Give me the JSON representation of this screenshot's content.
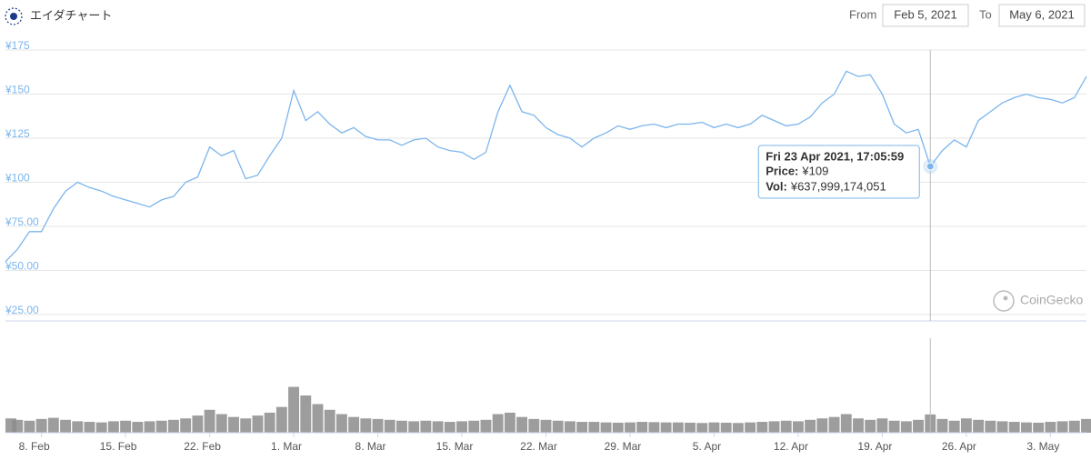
{
  "header": {
    "title": "エイダチャート",
    "from_label": "From",
    "from": "Feb 5, 2021",
    "to_label": "To",
    "to": "May 6, 2021"
  },
  "watermark": "CoinGecko",
  "tooltip": {
    "title": "Fri 23 Apr 2021, 17:05:59",
    "price_label": "Price:",
    "price": "¥109",
    "vol_label": "Vol:",
    "vol": "¥637,999,174,051"
  },
  "chart_data": [
    {
      "type": "line",
      "color": "#7cb5ec",
      "grid": true,
      "xlim": [
        "2021-02-05",
        "2021-05-06"
      ],
      "ylim": [
        25,
        175
      ],
      "yticks": [
        {
          "value": 25,
          "label": "¥25.00"
        },
        {
          "value": 50,
          "label": "¥50.00"
        },
        {
          "value": 75,
          "label": "¥75.00"
        },
        {
          "value": 100,
          "label": "¥100"
        },
        {
          "value": 125,
          "label": "¥125"
        },
        {
          "value": 150,
          "label": "¥150"
        },
        {
          "value": 175,
          "label": "¥175"
        }
      ],
      "x": [
        "2021-02-05",
        "2021-02-06",
        "2021-02-07",
        "2021-02-08",
        "2021-02-09",
        "2021-02-10",
        "2021-02-11",
        "2021-02-12",
        "2021-02-13",
        "2021-02-14",
        "2021-02-15",
        "2021-02-16",
        "2021-02-17",
        "2021-02-18",
        "2021-02-19",
        "2021-02-20",
        "2021-02-21",
        "2021-02-22",
        "2021-02-23",
        "2021-02-24",
        "2021-02-25",
        "2021-02-26",
        "2021-02-27",
        "2021-02-28",
        "2021-03-01",
        "2021-03-02",
        "2021-03-03",
        "2021-03-04",
        "2021-03-05",
        "2021-03-06",
        "2021-03-07",
        "2021-03-08",
        "2021-03-09",
        "2021-03-10",
        "2021-03-11",
        "2021-03-12",
        "2021-03-13",
        "2021-03-14",
        "2021-03-15",
        "2021-03-16",
        "2021-03-17",
        "2021-03-18",
        "2021-03-19",
        "2021-03-20",
        "2021-03-21",
        "2021-03-22",
        "2021-03-23",
        "2021-03-24",
        "2021-03-25",
        "2021-03-26",
        "2021-03-27",
        "2021-03-28",
        "2021-03-29",
        "2021-03-30",
        "2021-03-31",
        "2021-04-01",
        "2021-04-02",
        "2021-04-03",
        "2021-04-04",
        "2021-04-05",
        "2021-04-06",
        "2021-04-07",
        "2021-04-08",
        "2021-04-09",
        "2021-04-10",
        "2021-04-11",
        "2021-04-12",
        "2021-04-13",
        "2021-04-14",
        "2021-04-15",
        "2021-04-16",
        "2021-04-17",
        "2021-04-18",
        "2021-04-19",
        "2021-04-20",
        "2021-04-21",
        "2021-04-22",
        "2021-04-23",
        "2021-04-24",
        "2021-04-25",
        "2021-04-26",
        "2021-04-27",
        "2021-04-28",
        "2021-04-29",
        "2021-04-30",
        "2021-05-01",
        "2021-05-02",
        "2021-05-03",
        "2021-05-04",
        "2021-05-05",
        "2021-05-06"
      ],
      "values": [
        55,
        62,
        72,
        72,
        85,
        95,
        100,
        97,
        95,
        92,
        90,
        88,
        86,
        90,
        92,
        100,
        103,
        120,
        115,
        118,
        102,
        104,
        115,
        125,
        152,
        135,
        140,
        133,
        128,
        131,
        126,
        124,
        124,
        121,
        124,
        125,
        120,
        118,
        117,
        113,
        117,
        140,
        155,
        140,
        138,
        131,
        127,
        125,
        120,
        125,
        128,
        132,
        130,
        132,
        133,
        131,
        133,
        133,
        134,
        131,
        133,
        131,
        133,
        138,
        135,
        132,
        133,
        137,
        145,
        150,
        163,
        160,
        161,
        150,
        133,
        128,
        130,
        109,
        118,
        124,
        120,
        135,
        140,
        145,
        148,
        150,
        148,
        147,
        145,
        148,
        160
      ]
    },
    {
      "type": "bar",
      "color": "#8c8c8c",
      "xlim": [
        "2021-02-05",
        "2021-05-06"
      ],
      "ylim": [
        0,
        3300000000000
      ],
      "xticks": [
        {
          "value": "2021-02-08",
          "label": "8. Feb"
        },
        {
          "value": "2021-02-15",
          "label": "15. Feb"
        },
        {
          "value": "2021-02-22",
          "label": "22. Feb"
        },
        {
          "value": "2021-03-01",
          "label": "1. Mar"
        },
        {
          "value": "2021-03-08",
          "label": "8. Mar"
        },
        {
          "value": "2021-03-15",
          "label": "15. Mar"
        },
        {
          "value": "2021-03-22",
          "label": "22. Mar"
        },
        {
          "value": "2021-03-29",
          "label": "29. Mar"
        },
        {
          "value": "2021-04-05",
          "label": "5. Apr"
        },
        {
          "value": "2021-04-12",
          "label": "12. Apr"
        },
        {
          "value": "2021-04-19",
          "label": "19. Apr"
        },
        {
          "value": "2021-04-26",
          "label": "26. Apr"
        },
        {
          "value": "2021-05-03",
          "label": "3. May"
        }
      ],
      "x": [
        "2021-02-05",
        "2021-02-06",
        "2021-02-07",
        "2021-02-08",
        "2021-02-09",
        "2021-02-10",
        "2021-02-11",
        "2021-02-12",
        "2021-02-13",
        "2021-02-14",
        "2021-02-15",
        "2021-02-16",
        "2021-02-17",
        "2021-02-18",
        "2021-02-19",
        "2021-02-20",
        "2021-02-21",
        "2021-02-22",
        "2021-02-23",
        "2021-02-24",
        "2021-02-25",
        "2021-02-26",
        "2021-02-27",
        "2021-02-28",
        "2021-03-01",
        "2021-03-02",
        "2021-03-03",
        "2021-03-04",
        "2021-03-05",
        "2021-03-06",
        "2021-03-07",
        "2021-03-08",
        "2021-03-09",
        "2021-03-10",
        "2021-03-11",
        "2021-03-12",
        "2021-03-13",
        "2021-03-14",
        "2021-03-15",
        "2021-03-16",
        "2021-03-17",
        "2021-03-18",
        "2021-03-19",
        "2021-03-20",
        "2021-03-21",
        "2021-03-22",
        "2021-03-23",
        "2021-03-24",
        "2021-03-25",
        "2021-03-26",
        "2021-03-27",
        "2021-03-28",
        "2021-03-29",
        "2021-03-30",
        "2021-03-31",
        "2021-04-01",
        "2021-04-02",
        "2021-04-03",
        "2021-04-04",
        "2021-04-05",
        "2021-04-06",
        "2021-04-07",
        "2021-04-08",
        "2021-04-09",
        "2021-04-10",
        "2021-04-11",
        "2021-04-12",
        "2021-04-13",
        "2021-04-14",
        "2021-04-15",
        "2021-04-16",
        "2021-04-17",
        "2021-04-18",
        "2021-04-19",
        "2021-04-20",
        "2021-04-21",
        "2021-04-22",
        "2021-04-23",
        "2021-04-24",
        "2021-04-25",
        "2021-04-26",
        "2021-04-27",
        "2021-04-28",
        "2021-04-29",
        "2021-04-30",
        "2021-05-01",
        "2021-05-02",
        "2021-05-03",
        "2021-05-04",
        "2021-05-05",
        "2021-05-06"
      ],
      "values": [
        500000000000,
        450000000000,
        420000000000,
        480000000000,
        520000000000,
        450000000000,
        400000000000,
        380000000000,
        360000000000,
        400000000000,
        420000000000,
        380000000000,
        400000000000,
        420000000000,
        450000000000,
        500000000000,
        600000000000,
        800000000000,
        650000000000,
        550000000000,
        500000000000,
        600000000000,
        700000000000,
        900000000000,
        1600000000000,
        1300000000000,
        1000000000000,
        800000000000,
        650000000000,
        550000000000,
        500000000000,
        480000000000,
        450000000000,
        420000000000,
        400000000000,
        420000000000,
        400000000000,
        380000000000,
        400000000000,
        420000000000,
        450000000000,
        650000000000,
        700000000000,
        550000000000,
        480000000000,
        450000000000,
        420000000000,
        400000000000,
        380000000000,
        380000000000,
        360000000000,
        350000000000,
        360000000000,
        380000000000,
        370000000000,
        360000000000,
        360000000000,
        350000000000,
        340000000000,
        360000000000,
        350000000000,
        340000000000,
        360000000000,
        380000000000,
        400000000000,
        420000000000,
        400000000000,
        450000000000,
        500000000000,
        550000000000,
        650000000000,
        500000000000,
        450000000000,
        500000000000,
        420000000000,
        400000000000,
        450000000000,
        637999174051,
        480000000000,
        420000000000,
        500000000000,
        450000000000,
        420000000000,
        400000000000,
        380000000000,
        360000000000,
        350000000000,
        380000000000,
        400000000000,
        420000000000,
        480000000000
      ]
    }
  ]
}
